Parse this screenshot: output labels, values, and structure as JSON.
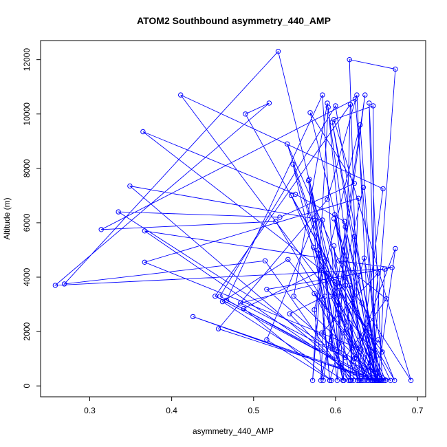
{
  "chart_data": {
    "type": "line",
    "title": "ATOM2 Southbound asymmetry_440_AMP",
    "xlabel": "asymmetry_440_AMP",
    "ylabel": "Altitude (m)",
    "xlim": [
      0.24,
      0.71
    ],
    "ylim": [
      -400,
      12700
    ],
    "xticks": [
      0.3,
      0.4,
      0.5,
      0.6,
      0.7
    ],
    "xtick_labels": [
      "0.3",
      "0.4",
      "0.5",
      "0.6",
      "0.7"
    ],
    "yticks": [
      0,
      2000,
      4000,
      6000,
      8000,
      10000,
      12000
    ],
    "ytick_labels": [
      "0",
      "2000",
      "4000",
      "6000",
      "8000",
      "10000",
      "12000"
    ],
    "grid": false,
    "legend": "none",
    "series": [
      {
        "color": "#0000ff",
        "marker": "open-circle",
        "points": [
          [
            0.593,
            200
          ],
          [
            0.567,
            7550
          ],
          [
            0.609,
            200
          ],
          [
            0.548,
            8150
          ],
          [
            0.631,
            200
          ],
          [
            0.652,
            1700
          ],
          [
            0.672,
            200
          ],
          [
            0.49,
            10000
          ],
          [
            0.519,
            10400
          ],
          [
            0.258,
            3700
          ],
          [
            0.66,
            4300
          ],
          [
            0.653,
            200
          ],
          [
            0.603,
            3800
          ],
          [
            0.365,
            9350
          ],
          [
            0.551,
            7050
          ],
          [
            0.611,
            6050
          ],
          [
            0.65,
            200
          ],
          [
            0.596,
            9700
          ],
          [
            0.65,
            1100
          ],
          [
            0.411,
            10700
          ],
          [
            0.658,
            7250
          ],
          [
            0.627,
            200
          ],
          [
            0.349,
            7350
          ],
          [
            0.584,
            6100
          ],
          [
            0.636,
            200
          ],
          [
            0.541,
            8900
          ],
          [
            0.617,
            3700
          ],
          [
            0.645,
            200
          ],
          [
            0.546,
            7000
          ],
          [
            0.626,
            2700
          ],
          [
            0.641,
            1950
          ],
          [
            0.633,
            200
          ],
          [
            0.367,
            5700
          ],
          [
            0.584,
            4700
          ],
          [
            0.602,
            200
          ],
          [
            0.612,
            5850
          ],
          [
            0.657,
            200
          ],
          [
            0.641,
            10400
          ],
          [
            0.649,
            200
          ],
          [
            0.569,
            10050
          ],
          [
            0.623,
            7450
          ],
          [
            0.532,
            6200
          ],
          [
            0.335,
            6400
          ],
          [
            0.655,
            200
          ],
          [
            0.549,
            3300
          ],
          [
            0.59,
            10400
          ],
          [
            0.631,
            1350
          ],
          [
            0.367,
            4550
          ],
          [
            0.628,
            6900
          ],
          [
            0.618,
            200
          ],
          [
            0.623,
            5500
          ],
          [
            0.654,
            200
          ],
          [
            0.574,
            3400
          ],
          [
            0.629,
            200
          ],
          [
            0.617,
            12000
          ],
          [
            0.673,
            11650
          ],
          [
            0.645,
            200
          ],
          [
            0.594,
            3300
          ],
          [
            0.64,
            200
          ],
          [
            0.599,
            6300
          ],
          [
            0.627,
            200
          ],
          [
            0.53,
            12300
          ],
          [
            0.269,
            3750
          ],
          [
            0.514,
            4600
          ],
          [
            0.616,
            200
          ],
          [
            0.594,
            1550
          ],
          [
            0.661,
            200
          ],
          [
            0.612,
            3700
          ],
          [
            0.667,
            200
          ],
          [
            0.623,
            1000
          ],
          [
            0.673,
            5050
          ],
          [
            0.651,
            200
          ],
          [
            0.457,
            2100
          ],
          [
            0.59,
            6850
          ],
          [
            0.626,
            10700
          ],
          [
            0.643,
            200
          ],
          [
            0.527,
            6050
          ],
          [
            0.314,
            5750
          ],
          [
            0.624,
            10550
          ],
          [
            0.652,
            200
          ],
          [
            0.63,
            9600
          ],
          [
            0.574,
            2800
          ],
          [
            0.585,
            200
          ],
          [
            0.636,
            10700
          ],
          [
            0.604,
            3300
          ],
          [
            0.603,
            1250
          ],
          [
            0.584,
            10700
          ],
          [
            0.467,
            3150
          ],
          [
            0.651,
            200
          ],
          [
            0.598,
            6150
          ],
          [
            0.632,
            3050
          ],
          [
            0.645,
            200
          ],
          [
            0.516,
            3550
          ],
          [
            0.669,
            4350
          ],
          [
            0.604,
            4600
          ],
          [
            0.662,
            3200
          ],
          [
            0.612,
            1050
          ],
          [
            0.484,
            3050
          ],
          [
            0.611,
            4000
          ],
          [
            0.692,
            200
          ],
          [
            0.598,
            9800
          ],
          [
            0.646,
            10300
          ],
          [
            0.647,
            200
          ],
          [
            0.453,
            3300
          ],
          [
            0.618,
            10350
          ],
          [
            0.609,
            200
          ],
          [
            0.568,
            7600
          ],
          [
            0.619,
            200
          ],
          [
            0.583,
            1950
          ],
          [
            0.652,
            4150
          ],
          [
            0.639,
            200
          ],
          [
            0.573,
            5100
          ],
          [
            0.651,
            200
          ],
          [
            0.426,
            2550
          ],
          [
            0.645,
            200
          ],
          [
            0.459,
            3300
          ],
          [
            0.6,
            10300
          ],
          [
            0.652,
            200
          ],
          [
            0.605,
            3650
          ],
          [
            0.598,
            5150
          ],
          [
            0.61,
            200
          ],
          [
            0.462,
            3100
          ],
          [
            0.542,
            4650
          ],
          [
            0.659,
            200
          ],
          [
            0.579,
            5000
          ],
          [
            0.596,
            1350
          ],
          [
            0.589,
            4150
          ],
          [
            0.657,
            1250
          ],
          [
            0.635,
            4700
          ],
          [
            0.593,
            200
          ],
          [
            0.575,
            6100
          ],
          [
            0.516,
            1700
          ],
          [
            0.595,
            200
          ],
          [
            0.488,
            2850
          ],
          [
            0.583,
            4250
          ],
          [
            0.572,
            200
          ],
          [
            0.591,
            10250
          ],
          [
            0.622,
            200
          ],
          [
            0.544,
            2650
          ],
          [
            0.587,
            3300
          ],
          [
            0.582,
            200
          ],
          [
            0.634,
            7300
          ]
        ]
      }
    ]
  }
}
